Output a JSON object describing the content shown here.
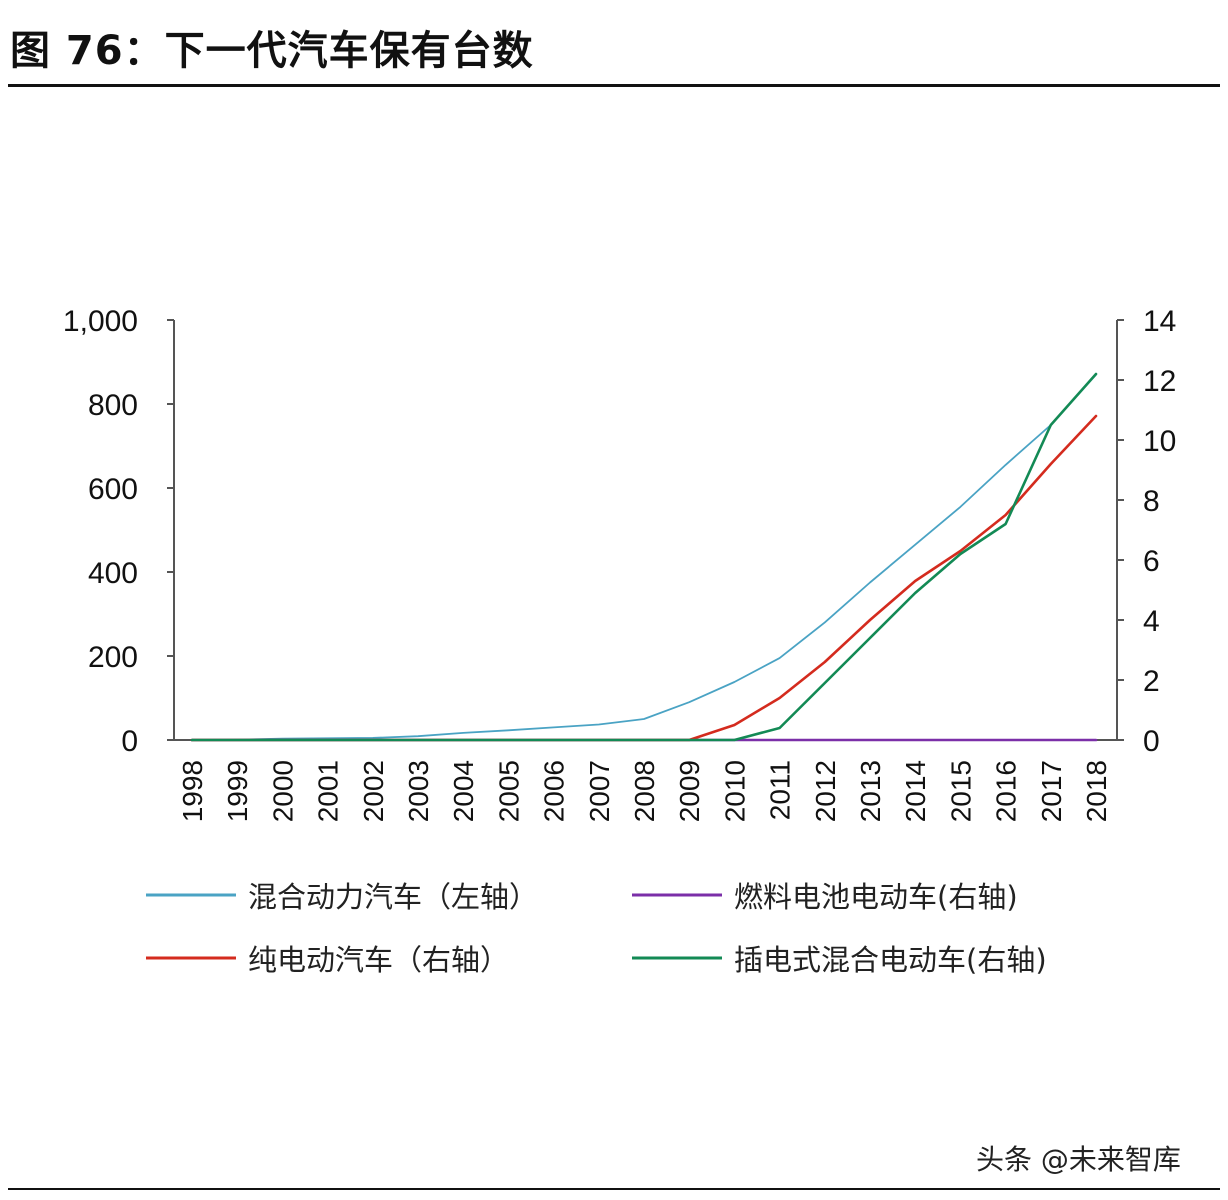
{
  "figure_title": "图 76：下一代汽车保有台数",
  "watermark": "头条 @未来智库",
  "chart_data": {
    "type": "line",
    "x": [
      "1998",
      "1999",
      "2000",
      "2001",
      "2002",
      "2003",
      "2004",
      "2005",
      "2006",
      "2007",
      "2008",
      "2009",
      "2010",
      "2011",
      "2012",
      "2013",
      "2014",
      "2015",
      "2016",
      "2017",
      "2018"
    ],
    "y_left_range": [
      0,
      1000
    ],
    "y_left_ticks": [
      "0",
      "200",
      "400",
      "600",
      "800",
      "1,000"
    ],
    "y_right_range": [
      0,
      14
    ],
    "y_right_ticks": [
      "0",
      "2",
      "4",
      "6",
      "8",
      "10",
      "12",
      "14"
    ],
    "legend_placement": "bottom",
    "grid": false,
    "series": [
      {
        "name": "混合动力汽车（左轴）",
        "axis": "left",
        "color": "#4aa3c4",
        "values": [
          0,
          1,
          3,
          4,
          5,
          9,
          17,
          23,
          30,
          37,
          50,
          90,
          138,
          195,
          280,
          375,
          465,
          555,
          655,
          750,
          870
        ]
      },
      {
        "name": "燃料电池电动车(右轴)",
        "axis": "right",
        "color": "#7b2fa8",
        "values": [
          0,
          0,
          0,
          0,
          0,
          0,
          0,
          0,
          0,
          0,
          0,
          0,
          0,
          0,
          0,
          0,
          0,
          0,
          0,
          0,
          0
        ]
      },
      {
        "name": "纯电动汽车（右轴）",
        "axis": "right",
        "color": "#d42b1e",
        "values": [
          0,
          0,
          0,
          0,
          0,
          0,
          0,
          0,
          0,
          0,
          0,
          0,
          0.5,
          1.4,
          2.6,
          4.0,
          5.3,
          6.3,
          7.5,
          9.2,
          10.8
        ]
      },
      {
        "name": "插电式混合电动车(右轴)",
        "axis": "right",
        "color": "#138a55",
        "values": [
          0,
          0,
          0,
          0,
          0,
          0,
          0,
          0,
          0,
          0,
          0,
          0,
          0,
          0.4,
          1.9,
          3.4,
          4.9,
          6.2,
          7.2,
          10.5,
          12.2
        ]
      }
    ]
  }
}
